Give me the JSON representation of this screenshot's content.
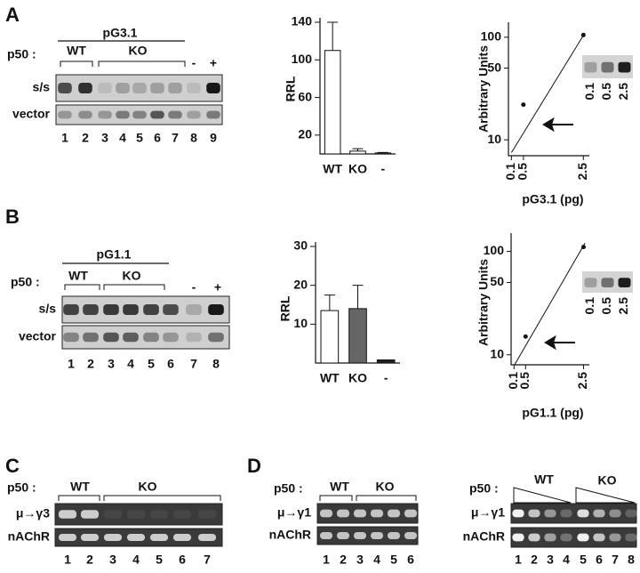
{
  "panel_labels": [
    "A",
    "B",
    "C",
    "D"
  ],
  "gels": [
    {
      "title": "pG3.1",
      "p50": "p50 :",
      "groups": [
        "WT",
        "KO",
        "-",
        "+"
      ],
      "rows": [
        "s/s",
        "vector"
      ],
      "lanes": [
        "1",
        "2",
        "3",
        "4",
        "5",
        "6",
        "7",
        "8",
        "9"
      ]
    },
    {
      "title": "pG1.1",
      "p50": "p50 :",
      "groups": [
        "WT",
        "KO",
        "-",
        "+"
      ],
      "rows": [
        "s/s",
        "vector"
      ],
      "lanes": [
        "1",
        "2",
        "3",
        "4",
        "5",
        "6",
        "7",
        "8"
      ]
    },
    {
      "p50": "p50 :",
      "groups": [
        "WT",
        "KO"
      ],
      "rows": [
        "μ→γ3",
        "nAChR"
      ],
      "lanes": [
        "1",
        "2",
        "3",
        "4",
        "5",
        "6",
        "7"
      ]
    },
    {
      "p50": "p50 :",
      "groups": [
        "WT",
        "KO"
      ],
      "rows": [
        "μ→γ1",
        "nAChR"
      ],
      "lanes": [
        "1",
        "2",
        "3",
        "4",
        "5",
        "6"
      ]
    },
    {
      "p50": "p50 :",
      "groups": [
        "WT",
        "KO"
      ],
      "rows": [
        "μ→γ1",
        "nAChR"
      ],
      "lanes": [
        "1",
        "2",
        "3",
        "4",
        "5",
        "6",
        "7",
        "8"
      ]
    }
  ],
  "chart_data": [
    {
      "type": "bar",
      "ylabel": "RRL",
      "categories": [
        "WT",
        "KO",
        "-"
      ],
      "values": [
        110,
        3,
        1
      ],
      "errors": [
        30,
        2.5,
        0.5
      ],
      "colors": [
        "#ffffff",
        "#ffffff",
        "#ffffff"
      ],
      "ylim": [
        0,
        140
      ],
      "yticks": [
        20,
        60,
        100,
        140
      ]
    },
    {
      "type": "scatter",
      "ylabel": "Arbitrary Units",
      "xlabel": "pG3.1 (pg)",
      "log_y": true,
      "x": [
        0.5,
        2.5
      ],
      "values": [
        22,
        105
      ],
      "fit": {
        "x": [
          0.1,
          2.55
        ],
        "values": [
          7.5,
          110
        ]
      },
      "xlim": [
        0,
        2.7
      ],
      "ylim": [
        7,
        140
      ],
      "xticks": [
        0.1,
        0.5,
        2.5
      ],
      "yticks": [
        10,
        50,
        100
      ],
      "inset_labels": [
        "0.1",
        "0.5",
        "2.5"
      ]
    },
    {
      "type": "bar",
      "ylabel": "RRL",
      "categories": [
        "WT",
        "KO",
        "-"
      ],
      "values": [
        13.5,
        14,
        0.8
      ],
      "errors": [
        4,
        6,
        0
      ],
      "colors": [
        "#ffffff",
        "#666666",
        "#222222"
      ],
      "ylim": [
        0,
        30
      ],
      "yticks": [
        10,
        20,
        30
      ]
    },
    {
      "type": "scatter",
      "ylabel": "Arbitrary Units",
      "xlabel": "pG1.1  (pg)",
      "log_y": true,
      "x": [
        0.5,
        2.5
      ],
      "values": [
        15,
        110
      ],
      "fit": {
        "x": [
          0.12,
          2.55
        ],
        "values": [
          8,
          120
        ]
      },
      "xlim": [
        0,
        2.7
      ],
      "ylim": [
        8,
        150
      ],
      "xticks": [
        0.1,
        0.5,
        2.5
      ],
      "yticks": [
        10,
        50,
        100
      ],
      "inset_labels": [
        "0.1",
        "0.5",
        "2.5"
      ]
    }
  ]
}
